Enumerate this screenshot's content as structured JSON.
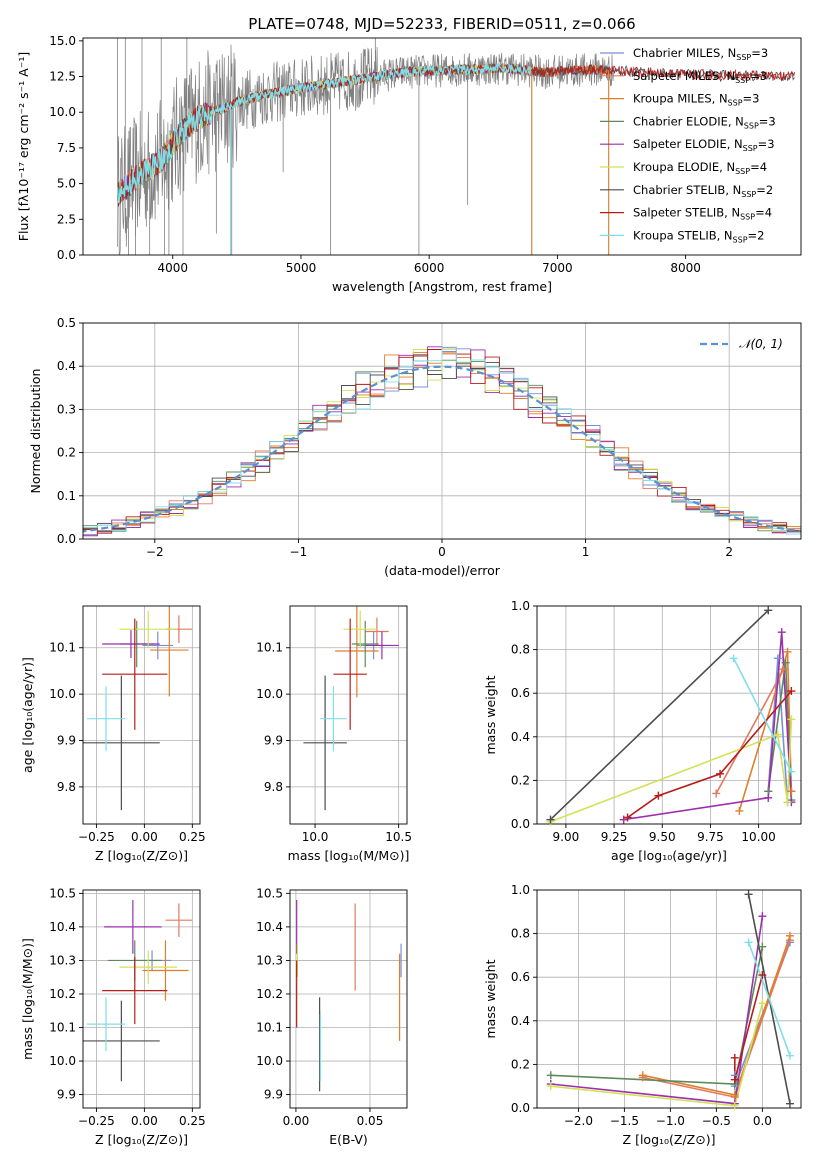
{
  "figure_title": "PLATE=0748, MJD=52233, FIBERID=0511, z=0.066",
  "colors": {
    "grid": "#b0b0b0",
    "spectrum_data": "#808080",
    "normal_curve": "#5b8fd6"
  },
  "chart_data": [
    {
      "id": "spectrum",
      "type": "line",
      "title": "PLATE=0748, MJD=52233, FIBERID=0511, z=0.066",
      "xlabel": "wavelength [Angstrom, rest frame]",
      "ylabel": "Flux [fλ10⁻¹⁷ erg cm⁻² s⁻¹ A⁻¹]",
      "xlim": [
        3300,
        8900
      ],
      "ylim": [
        0,
        15.2
      ],
      "xticks": [
        "4000",
        "5000",
        "6000",
        "7000",
        "8000"
      ],
      "yticks": [
        "0.0",
        "2.5",
        "5.0",
        "7.5",
        "10.0",
        "12.5",
        "15.0"
      ],
      "grid": false,
      "legend_position": "right",
      "continuum_x": [
        3570,
        3700,
        3800,
        3900,
        4000,
        4100,
        4200,
        4300,
        4400,
        4500,
        4700,
        5000,
        5300,
        5500,
        5800,
        6000,
        6300,
        6600,
        6900,
        7100,
        7300,
        7500,
        7700,
        8000,
        8300,
        8800
      ],
      "continuum_y": [
        4.2,
        5.3,
        6.0,
        6.5,
        7.8,
        8.9,
        9.6,
        10.0,
        10.3,
        10.7,
        11.2,
        11.7,
        12.1,
        12.4,
        12.8,
        12.9,
        13.0,
        13.1,
        12.8,
        12.9,
        13.0,
        12.9,
        12.8,
        12.7,
        12.6,
        12.5
      ],
      "data_spikes": [
        {
          "x": 3570,
          "y": 15.2
        },
        {
          "x": 3630,
          "y": 15.2
        },
        {
          "x": 3655,
          "y": 0
        },
        {
          "x": 3710,
          "y": 0
        },
        {
          "x": 3760,
          "y": 15.2
        },
        {
          "x": 3820,
          "y": 0
        },
        {
          "x": 3910,
          "y": 15.2
        },
        {
          "x": 3935,
          "y": 0
        },
        {
          "x": 3970,
          "y": 0
        },
        {
          "x": 4080,
          "y": 0
        },
        {
          "x": 4110,
          "y": 15.2
        },
        {
          "x": 4340,
          "y": 1.5
        },
        {
          "x": 4460,
          "y": 0
        },
        {
          "x": 4861,
          "y": 5.8
        },
        {
          "x": 5230,
          "y": 0
        },
        {
          "x": 5580,
          "y": 15.2
        },
        {
          "x": 5920,
          "y": 0
        },
        {
          "x": 6300,
          "y": 3.5
        },
        {
          "x": 6800,
          "y": 0
        },
        {
          "x": 7400,
          "y": 0
        }
      ],
      "series": [
        {
          "name": "Chabrier MILES, N",
          "suffix": "=3",
          "color": "#7a8fd6",
          "x_max": 7400
        },
        {
          "name": "Salpeter MILES, N",
          "suffix": "=3",
          "color": "#e07a5f",
          "x_max": 7400
        },
        {
          "name": "Kroupa MILES, N",
          "suffix": "=3",
          "color": "#e07f2a",
          "x_max": 7400
        },
        {
          "name": "Chabrier ELODIE, N",
          "suffix": "=3",
          "color": "#5c8a5c",
          "x_max": 6800
        },
        {
          "name": "Salpeter ELODIE, N",
          "suffix": "=3",
          "color": "#9b2fae",
          "x_max": 6800
        },
        {
          "name": "Kroupa ELODIE, N",
          "suffix": "=4",
          "color": "#d4e157",
          "x_max": 6800
        },
        {
          "name": "Chabrier STELIB, N",
          "suffix": "=2",
          "color": "#4d4d4d",
          "x_max": 8850
        },
        {
          "name": "Salpeter STELIB, N",
          "suffix": "=4",
          "color": "#b71c1c",
          "x_max": 8850
        },
        {
          "name": "Kroupa STELIB, N",
          "suffix": "=2",
          "color": "#80deea",
          "x_max": 6800
        }
      ],
      "legend_subscript": "SSP"
    },
    {
      "id": "residuals",
      "type": "histogram",
      "xlabel": "(data-model)/error",
      "ylabel": "Normed distribution",
      "xlim": [
        -2.5,
        2.5
      ],
      "ylim": [
        0,
        0.5
      ],
      "xticks": [
        "−2",
        "−1",
        "0",
        "1",
        "2"
      ],
      "yticks": [
        "0.0",
        "0.1",
        "0.2",
        "0.3",
        "0.4",
        "0.5"
      ],
      "grid": true,
      "legend_position": "top-right",
      "normal_label": "𝒩(0, 1)",
      "bin_width": 0.1
    },
    {
      "id": "age_vs_Z",
      "type": "scatter",
      "xlabel": "Z [log₁₀(Z/Z⊙)]",
      "ylabel": "age  [log₁₀(age/yr)]",
      "xlim": [
        -0.32,
        0.29
      ],
      "ylim": [
        9.72,
        10.19
      ],
      "xticks": [
        "−0.25",
        "0.00",
        "0.25"
      ],
      "xtick_values": [
        -0.25,
        0.0,
        0.25
      ],
      "yticks": [
        "9.8",
        "9.9",
        "10.0",
        "10.1"
      ],
      "ytick_values": [
        9.8,
        9.9,
        10.0,
        10.1
      ],
      "grid": true,
      "points": [
        {
          "color": "#7a8fd6",
          "x": 0.07,
          "xerr": 0.08,
          "y": 10.105,
          "yerr": 0.03
        },
        {
          "color": "#e07a5f",
          "x": 0.18,
          "xerr": 0.07,
          "y": 10.14,
          "yerr": 0.03
        },
        {
          "color": "#e07f2a",
          "x": 0.13,
          "xerr": 0.1,
          "y": 10.095,
          "yerr": 0.1
        },
        {
          "color": "#5c8a5c",
          "x": -0.04,
          "xerr": 0.09,
          "y": 10.108,
          "yerr": 0.05
        },
        {
          "color": "#9b2fae",
          "x": -0.07,
          "xerr": 0.15,
          "y": 10.108,
          "yerr": 0.03
        },
        {
          "color": "#d4e157",
          "x": 0.02,
          "xerr": 0.15,
          "y": 10.14,
          "yerr": 0.04
        },
        {
          "color": "#4d4d4d",
          "x": -0.12,
          "xerr": 0.2,
          "y": 9.895,
          "yerr": 0.145
        },
        {
          "color": "#b71c1c",
          "x": -0.05,
          "xerr": 0.17,
          "y": 10.043,
          "yerr": 0.12
        },
        {
          "color": "#80deea",
          "x": -0.2,
          "xerr": 0.1,
          "y": 9.947,
          "yerr": 0.07
        }
      ]
    },
    {
      "id": "age_vs_mass",
      "type": "scatter",
      "xlabel": "mass [log₁₀(M/M⊙)]",
      "ylabel": "",
      "xlim": [
        9.85,
        10.55
      ],
      "ylim": [
        9.72,
        10.19
      ],
      "xticks": [
        "10.0",
        "10.5"
      ],
      "xtick_values": [
        10.0,
        10.5
      ],
      "yticks": [
        "9.8",
        "9.9",
        "10.0",
        "10.1"
      ],
      "ytick_values": [
        9.8,
        9.9,
        10.0,
        10.1
      ],
      "grid": true,
      "points": [
        {
          "color": "#7a8fd6",
          "x": 10.35,
          "xerr": 0.1,
          "y": 10.105,
          "yerr": 0.03
        },
        {
          "color": "#e07a5f",
          "x": 10.37,
          "xerr": 0.07,
          "y": 10.135,
          "yerr": 0.03
        },
        {
          "color": "#e07f2a",
          "x": 10.25,
          "xerr": 0.13,
          "y": 10.093,
          "yerr": 0.1
        },
        {
          "color": "#5c8a5c",
          "x": 10.3,
          "xerr": 0.08,
          "y": 10.108,
          "yerr": 0.05
        },
        {
          "color": "#9b2fae",
          "x": 10.4,
          "xerr": 0.1,
          "y": 10.105,
          "yerr": 0.03
        },
        {
          "color": "#d4e157",
          "x": 10.27,
          "xerr": 0.1,
          "y": 10.14,
          "yerr": 0.04
        },
        {
          "color": "#4d4d4d",
          "x": 10.06,
          "xerr": 0.13,
          "y": 9.895,
          "yerr": 0.145
        },
        {
          "color": "#b71c1c",
          "x": 10.21,
          "xerr": 0.1,
          "y": 10.043,
          "yerr": 0.12
        },
        {
          "color": "#80deea",
          "x": 10.11,
          "xerr": 0.08,
          "y": 9.947,
          "yerr": 0.07
        }
      ]
    },
    {
      "id": "massweight_vs_age",
      "type": "line",
      "xlabel": "age  [log₁₀(age/yr)]",
      "ylabel": "mass weight",
      "xlim": [
        8.85,
        10.22
      ],
      "ylim": [
        0,
        1.0
      ],
      "xticks": [
        "9.00",
        "9.25",
        "9.50",
        "9.75",
        "10.00"
      ],
      "xtick_values": [
        9.0,
        9.25,
        9.5,
        9.75,
        10.0
      ],
      "yticks": [
        "0.0",
        "0.2",
        "0.4",
        "0.6",
        "0.8",
        "1.0"
      ],
      "ytick_values": [
        0.0,
        0.2,
        0.4,
        0.6,
        0.8,
        1.0
      ],
      "grid": true,
      "series": [
        {
          "color": "#7a8fd6",
          "x": [
            10.05,
            10.1,
            10.15
          ],
          "y": [
            0.15,
            0.76,
            0.1
          ]
        },
        {
          "color": "#e07a5f",
          "x": [
            9.78,
            10.13,
            10.17
          ],
          "y": [
            0.14,
            0.71,
            0.15
          ]
        },
        {
          "color": "#e07f2a",
          "x": [
            9.9,
            10.15,
            10.17
          ],
          "y": [
            0.06,
            0.79,
            0.15
          ]
        },
        {
          "color": "#5c8a5c",
          "x": [
            10.05,
            10.14,
            10.17
          ],
          "y": [
            0.15,
            0.74,
            0.11
          ]
        },
        {
          "color": "#9b2fae",
          "x": [
            9.3,
            10.05,
            10.12,
            10.17
          ],
          "y": [
            0.02,
            0.12,
            0.88,
            0.1
          ]
        },
        {
          "color": "#d4e157",
          "x": [
            8.92,
            10.1,
            10.15,
            10.17
          ],
          "y": [
            0.01,
            0.41,
            0.1,
            0.48
          ]
        },
        {
          "color": "#4d4d4d",
          "x": [
            8.92,
            10.05
          ],
          "y": [
            0.02,
            0.98
          ]
        },
        {
          "color": "#b71c1c",
          "x": [
            9.32,
            9.48,
            9.8,
            10.17
          ],
          "y": [
            0.03,
            0.13,
            0.23,
            0.61
          ]
        },
        {
          "color": "#80deea",
          "x": [
            9.87,
            10.17
          ],
          "y": [
            0.76,
            0.24
          ]
        }
      ]
    },
    {
      "id": "mass_vs_Z",
      "type": "scatter",
      "xlabel": "Z [log₁₀(Z/Z⊙)]",
      "ylabel": "mass [log₁₀(M/M⊙)]",
      "xlim": [
        -0.32,
        0.29
      ],
      "ylim": [
        9.86,
        10.51
      ],
      "xticks": [
        "−0.25",
        "0.00",
        "0.25"
      ],
      "xtick_values": [
        -0.25,
        0.0,
        0.25
      ],
      "yticks": [
        "9.9",
        "10.0",
        "10.1",
        "10.2",
        "10.3",
        "10.4",
        "10.5"
      ],
      "ytick_values": [
        9.9,
        10.0,
        10.1,
        10.2,
        10.3,
        10.4,
        10.5
      ],
      "grid": true,
      "points": [
        {
          "color": "#7a8fd6",
          "x": 0.04,
          "xerr": 0.1,
          "y": 10.3,
          "yerr": 0.03
        },
        {
          "color": "#e07a5f",
          "x": 0.18,
          "xerr": 0.07,
          "y": 10.42,
          "yerr": 0.05
        },
        {
          "color": "#e07f2a",
          "x": 0.11,
          "xerr": 0.12,
          "y": 10.27,
          "yerr": 0.09
        },
        {
          "color": "#5c8a5c",
          "x": -0.05,
          "xerr": 0.14,
          "y": 10.3,
          "yerr": 0.06
        },
        {
          "color": "#9b2fae",
          "x": -0.06,
          "xerr": 0.15,
          "y": 10.4,
          "yerr": 0.08
        },
        {
          "color": "#d4e157",
          "x": 0.02,
          "xerr": 0.15,
          "y": 10.28,
          "yerr": 0.05
        },
        {
          "color": "#4d4d4d",
          "x": -0.12,
          "xerr": 0.2,
          "y": 10.06,
          "yerr": 0.12
        },
        {
          "color": "#b71c1c",
          "x": -0.05,
          "xerr": 0.17,
          "y": 10.21,
          "yerr": 0.1
        },
        {
          "color": "#80deea",
          "x": -0.2,
          "xerr": 0.1,
          "y": 10.11,
          "yerr": 0.08
        }
      ]
    },
    {
      "id": "mass_vs_EBV",
      "type": "scatter",
      "xlabel": "E(B-V)",
      "ylabel": "",
      "xlim": [
        -0.004,
        0.075
      ],
      "ylim": [
        9.86,
        10.51
      ],
      "xticks": [
        "0.00",
        "0.05"
      ],
      "xtick_values": [
        0.0,
        0.05
      ],
      "yticks": [
        "9.9",
        "10.0",
        "10.1",
        "10.2",
        "10.3",
        "10.4",
        "10.5"
      ],
      "ytick_values": [
        9.9,
        10.0,
        10.1,
        10.2,
        10.3,
        10.4,
        10.5
      ],
      "grid": true,
      "points": [
        {
          "color": "#7a8fd6",
          "x": 0.071,
          "xerr": 0,
          "y": 10.3,
          "yerr": 0.05
        },
        {
          "color": "#e07a5f",
          "x": 0.04,
          "xerr": 0,
          "y": 10.34,
          "yerr": 0.13
        },
        {
          "color": "#e07f2a",
          "x": 0.07,
          "xerr": 0,
          "y": 10.19,
          "yerr": 0.13
        },
        {
          "color": "#5c8a5c",
          "x": 0.016,
          "xerr": 0,
          "y": 10.07,
          "yerr": 0.08
        },
        {
          "color": "#9b2fae",
          "x": 0.0005,
          "xerr": 0,
          "y": 10.4,
          "yerr": 0.08
        },
        {
          "color": "#d4e157",
          "x": 0.001,
          "xerr": 0,
          "y": 10.3,
          "yerr": 0.05
        },
        {
          "color": "#4d4d4d",
          "x": 0.016,
          "xerr": 0,
          "y": 10.05,
          "yerr": 0.14
        },
        {
          "color": "#b71c1c",
          "x": 0.0005,
          "xerr": 0,
          "y": 10.2,
          "yerr": 0.1
        },
        {
          "color": "#80deea",
          "x": 0.0165,
          "xerr": 0,
          "y": 10.04,
          "yerr": 0.1
        }
      ]
    },
    {
      "id": "massweight_vs_Z",
      "type": "line",
      "xlabel": "Z [log₁₀(Z/Z⊙)]",
      "ylabel": "mass weight",
      "xlim": [
        -2.45,
        0.42
      ],
      "ylim": [
        0,
        1.0
      ],
      "xticks": [
        "−2.0",
        "−1.5",
        "−1.0",
        "−0.5",
        "0.0"
      ],
      "xtick_values": [
        -2.0,
        -1.5,
        -1.0,
        -0.5,
        0.0
      ],
      "yticks": [
        "0.0",
        "0.2",
        "0.4",
        "0.6",
        "0.8",
        "1.0"
      ],
      "ytick_values": [
        0.0,
        0.2,
        0.4,
        0.6,
        0.8,
        1.0
      ],
      "grid": true,
      "series": [
        {
          "color": "#7a8fd6",
          "x": [
            -0.3,
            -0.3,
            0.3
          ],
          "y": [
            0.15,
            0.1,
            0.76
          ]
        },
        {
          "color": "#e07a5f",
          "x": [
            -1.3,
            -0.3,
            0.3
          ],
          "y": [
            0.14,
            0.05,
            0.77
          ]
        },
        {
          "color": "#e07f2a",
          "x": [
            -1.3,
            -0.3,
            0.3
          ],
          "y": [
            0.15,
            0.06,
            0.79
          ]
        },
        {
          "color": "#5c8a5c",
          "x": [
            -2.3,
            -0.3,
            0.0
          ],
          "y": [
            0.15,
            0.11,
            0.74
          ]
        },
        {
          "color": "#9b2fae",
          "x": [
            -2.3,
            -0.3,
            0.0
          ],
          "y": [
            0.11,
            0.02,
            0.88
          ]
        },
        {
          "color": "#d4e157",
          "x": [
            -2.3,
            -0.3,
            0.0
          ],
          "y": [
            0.1,
            0.01,
            0.48
          ]
        },
        {
          "color": "#4d4d4d",
          "x": [
            -0.15,
            0.3
          ],
          "y": [
            0.98,
            0.02
          ]
        },
        {
          "color": "#b71c1c",
          "x": [
            -0.3,
            -0.3,
            0.0
          ],
          "y": [
            0.23,
            0.13,
            0.61
          ]
        },
        {
          "color": "#80deea",
          "x": [
            -0.15,
            0.3
          ],
          "y": [
            0.76,
            0.24
          ]
        }
      ]
    }
  ]
}
